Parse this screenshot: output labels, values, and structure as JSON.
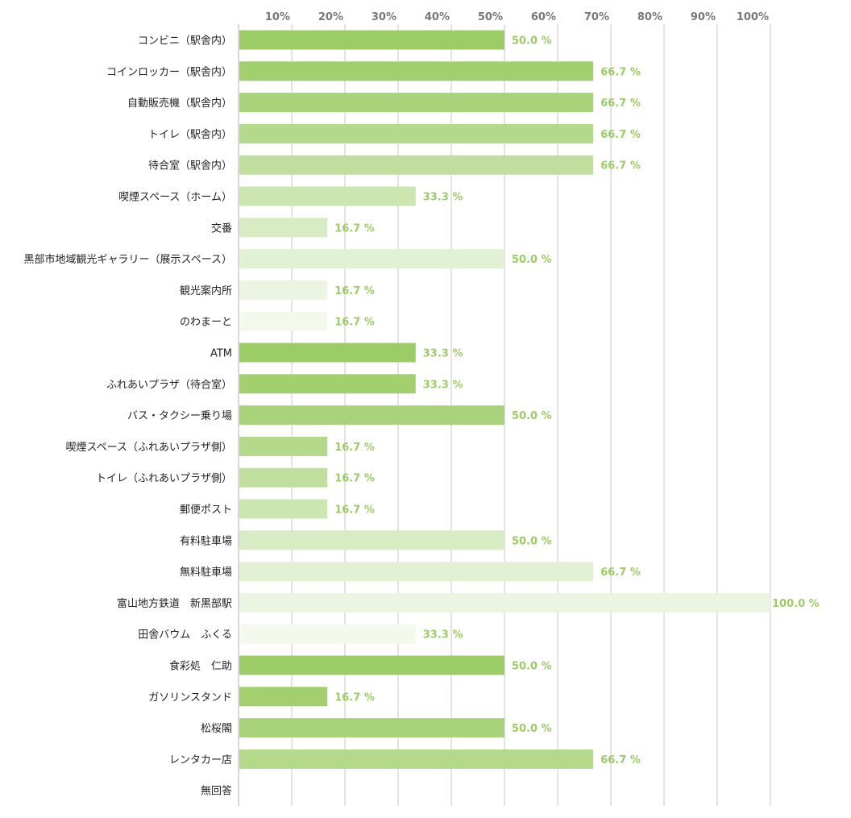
{
  "chart_data": {
    "type": "bar",
    "orientation": "horizontal",
    "categories": [
      "コンビニ（駅舎内）",
      "コインロッカー（駅舎内）",
      "自動販売機（駅舎内）",
      "トイレ（駅舎内）",
      "待合室（駅舎内）",
      "喫煙スペース（ホーム）",
      "交番",
      "黒部市地域観光ギャラリー（展示スペース）",
      "観光案内所",
      "のわまーと",
      "ATM",
      "ふれあいプラザ（待合室）",
      "バス・タクシー乗り場",
      "喫煙スペース（ふれあいプラザ側）",
      "トイレ（ふれあいプラザ側）",
      "郵便ポスト",
      "有料駐車場",
      "無料駐車場",
      "富山地方鉄道　新黒部駅",
      "田舎バウム　ふくる",
      "食彩処　仁助",
      "ガソリンスタンド",
      "松桜閣",
      "レンタカー店",
      "無回答"
    ],
    "values": [
      50.0,
      66.7,
      66.7,
      66.7,
      66.7,
      33.3,
      16.7,
      50.0,
      16.7,
      16.7,
      33.3,
      33.3,
      50.0,
      16.7,
      16.7,
      16.7,
      50.0,
      66.7,
      100.0,
      33.3,
      50.0,
      16.7,
      50.0,
      66.7,
      0
    ],
    "value_labels": [
      "50.0 %",
      "66.7 %",
      "66.7 %",
      "66.7 %",
      "66.7 %",
      "33.3 %",
      "16.7 %",
      "50.0 %",
      "16.7 %",
      "16.7 %",
      "33.3 %",
      "33.3 %",
      "50.0 %",
      "16.7 %",
      "16.7 %",
      "16.7 %",
      "50.0 %",
      "66.7 %",
      "100.0 %",
      "33.3 %",
      "50.0 %",
      "16.7 %",
      "50.0 %",
      "66.7 %",
      ""
    ],
    "xticks": [
      "10%",
      "20%",
      "30%",
      "40%",
      "50%",
      "60%",
      "70%",
      "80%",
      "90%",
      "100%"
    ],
    "xlim": [
      0,
      100
    ],
    "grid": true,
    "tick_position": "top",
    "bar_colors": [
      "#9ccc65",
      "#a2d06e",
      "#a9d37a",
      "#b4d98a",
      "#c0df9d",
      "#cce6b0",
      "#d7ecc2",
      "#e2f1d4",
      "#ebf5e1",
      "#f3f9ec",
      "#9ccc65",
      "#a2d06e",
      "#a9d37a",
      "#b4d98a",
      "#c0df9d",
      "#cce6b0",
      "#d7ecc2",
      "#e2f1d4",
      "#ebf5e1",
      "#f3f9ec",
      "#9ccc65",
      "#a2d06e",
      "#a9d37a",
      "#b4d98a",
      "#c0df9d"
    ],
    "value_label_color": "#9ccc65"
  }
}
